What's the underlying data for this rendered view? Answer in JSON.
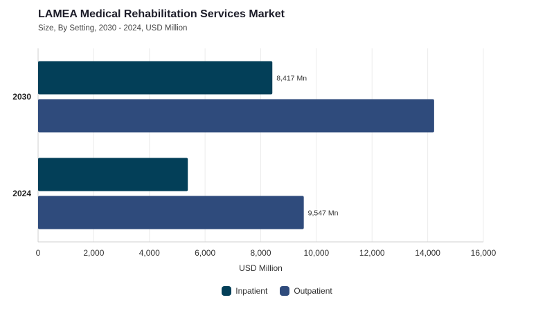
{
  "chart_data": {
    "type": "bar",
    "orientation": "horizontal",
    "title": "LAMEA Medical Rehabilitation Services Market",
    "subtitle": "Size, By Setting, 2030 - 2024, USD Million",
    "xlabel": "USD Million",
    "ylabel": "",
    "xlim": [
      0,
      16000
    ],
    "x_ticks": [
      "0",
      "2,000",
      "4,000",
      "6,000",
      "8,000",
      "10,000",
      "12,000",
      "14,000",
      "16,000"
    ],
    "categories": [
      "2030",
      "2024"
    ],
    "series": [
      {
        "name": "Inpatient",
        "color": "#033f58",
        "values": [
          8417,
          5380
        ],
        "data_labels": [
          "8,417 Mn",
          ""
        ]
      },
      {
        "name": "Outpatient",
        "color": "#2f4b7c",
        "values": [
          14230,
          9547
        ],
        "data_labels": [
          "",
          "9,547 Mn"
        ]
      }
    ],
    "grid": true,
    "legend_position": "bottom"
  }
}
